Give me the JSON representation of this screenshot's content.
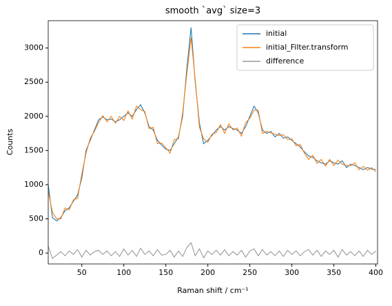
{
  "chart_data": {
    "type": "line",
    "title": "smooth `avg` size=3",
    "xlabel": "Raman shift / cm⁻¹",
    "ylabel": "Counts",
    "x": [
      10,
      15,
      20,
      25,
      30,
      35,
      40,
      45,
      50,
      55,
      60,
      65,
      70,
      75,
      80,
      85,
      90,
      95,
      100,
      105,
      110,
      115,
      120,
      125,
      130,
      135,
      140,
      145,
      150,
      155,
      160,
      165,
      170,
      175,
      180,
      185,
      190,
      195,
      200,
      205,
      210,
      215,
      220,
      225,
      230,
      235,
      240,
      245,
      250,
      255,
      260,
      265,
      270,
      275,
      280,
      285,
      290,
      295,
      300,
      305,
      310,
      315,
      320,
      325,
      330,
      335,
      340,
      345,
      350,
      355,
      360,
      365,
      370,
      375,
      380,
      385,
      390,
      395,
      400
    ],
    "series": [
      {
        "name": "initial",
        "color": "#1f77b4",
        "values": [
          1000,
          520,
          470,
          520,
          620,
          660,
          760,
          850,
          1100,
          1500,
          1650,
          1800,
          1950,
          1990,
          1950,
          1960,
          1920,
          1950,
          2000,
          2050,
          2000,
          2100,
          2170,
          2050,
          1850,
          1800,
          1650,
          1580,
          1520,
          1500,
          1600,
          1700,
          2000,
          2700,
          3300,
          2500,
          1900,
          1600,
          1650,
          1720,
          1800,
          1850,
          1800,
          1850,
          1820,
          1800,
          1750,
          1850,
          2000,
          2150,
          2050,
          1800,
          1750,
          1780,
          1700,
          1750,
          1680,
          1700,
          1650,
          1600,
          1550,
          1480,
          1420,
          1400,
          1350,
          1320,
          1300,
          1350,
          1320,
          1300,
          1350,
          1250,
          1300,
          1280,
          1250,
          1220,
          1250,
          1230,
          1220
        ]
      },
      {
        "name": "initial_Filter.transform",
        "color": "#ff7f0e",
        "values": [
          900,
          600,
          500,
          500,
          660,
          630,
          780,
          800,
          1160,
          1460,
          1680,
          1780,
          1910,
          2010,
          1920,
          2000,
          1900,
          2000,
          1940,
          2080,
          1960,
          2150,
          2100,
          2070,
          1820,
          1840,
          1600,
          1610,
          1540,
          1460,
          1660,
          1670,
          2050,
          2620,
          3150,
          2540,
          1840,
          1670,
          1620,
          1740,
          1760,
          1880,
          1750,
          1890,
          1800,
          1830,
          1710,
          1910,
          1970,
          2090,
          2090,
          1750,
          1780,
          1760,
          1740,
          1720,
          1730,
          1660,
          1670,
          1570,
          1590,
          1460,
          1370,
          1430,
          1310,
          1370,
          1270,
          1370,
          1280,
          1360,
          1300,
          1280,
          1280,
          1320,
          1220,
          1270,
          1210,
          1250,
          1190
        ]
      },
      {
        "name": "difference",
        "color": "#999999",
        "values": [
          100,
          -80,
          -30,
          20,
          -40,
          30,
          -20,
          50,
          -60,
          40,
          -30,
          20,
          40,
          -20,
          30,
          -40,
          20,
          -50,
          60,
          -30,
          40,
          -50,
          70,
          -20,
          30,
          -40,
          50,
          -30,
          -20,
          40,
          -60,
          30,
          -50,
          80,
          150,
          -40,
          60,
          -70,
          30,
          -20,
          40,
          -30,
          50,
          -40,
          20,
          -30,
          40,
          -60,
          30,
          60,
          -40,
          50,
          -30,
          20,
          -40,
          30,
          -50,
          40,
          -20,
          30,
          -40,
          20,
          50,
          -30,
          40,
          -50,
          30,
          -20,
          40,
          -60,
          50,
          -30,
          20,
          -40,
          30,
          -50,
          40,
          -20,
          30
        ]
      }
    ],
    "xlim": [
      10,
      402
    ],
    "ylim": [
      -160,
      3400
    ],
    "xticks": [
      50,
      100,
      150,
      200,
      250,
      300,
      350,
      400
    ],
    "yticks": [
      0,
      500,
      1000,
      1500,
      2000,
      2500,
      3000
    ],
    "legend": "upper right"
  }
}
